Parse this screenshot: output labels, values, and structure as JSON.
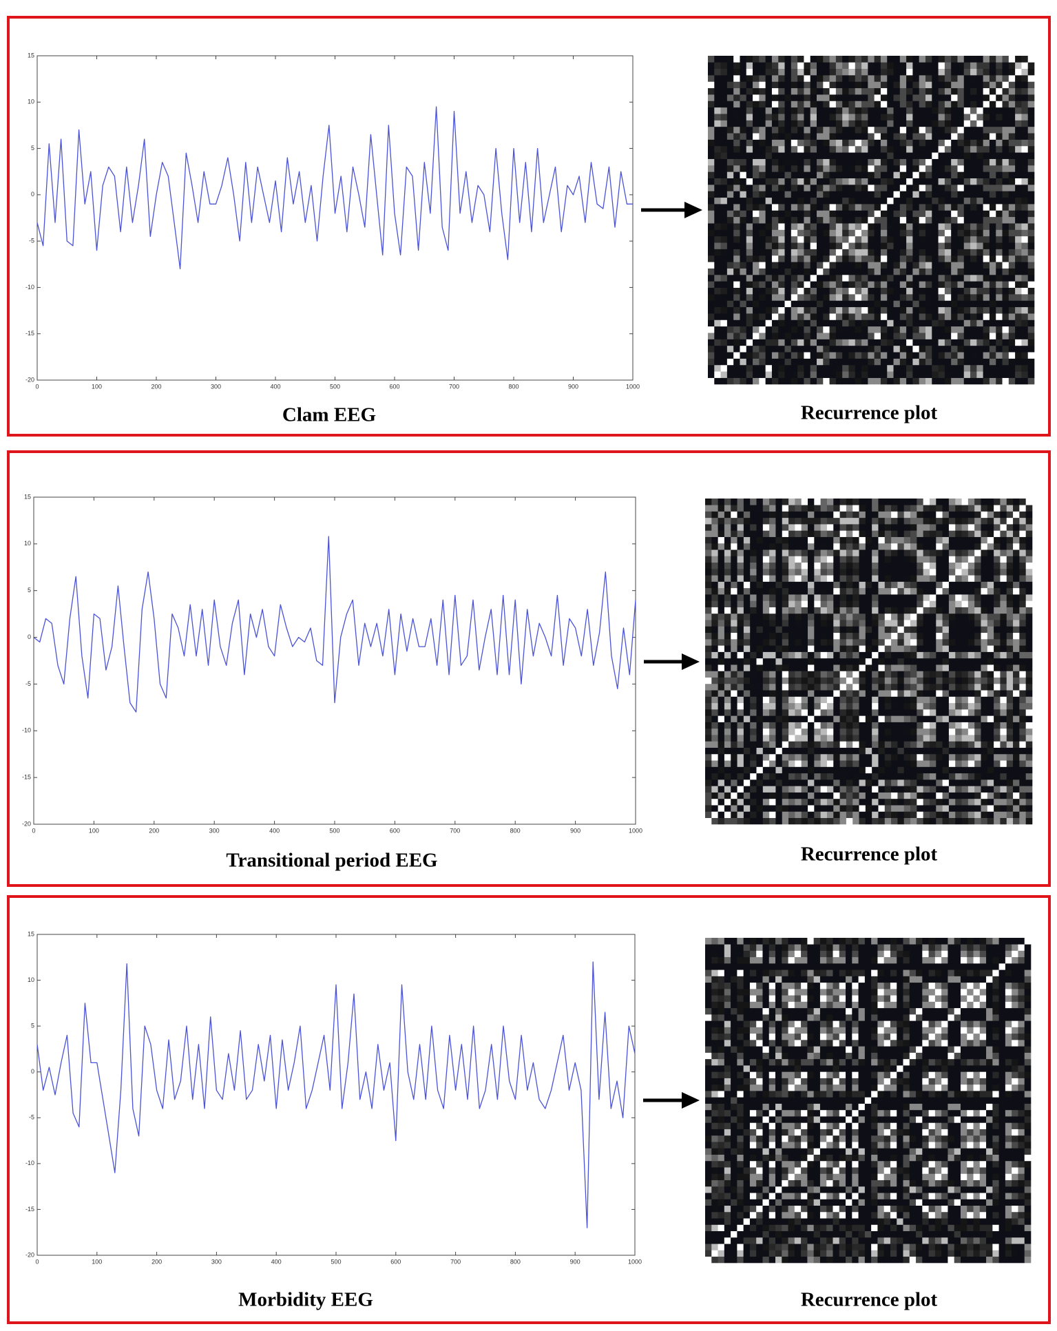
{
  "chart_data": [
    {
      "type": "line",
      "title": "Clam EEG",
      "plot_label": "Recurrence plot",
      "color": "#4a52d6",
      "xlim": [
        0,
        1000
      ],
      "ylim": [
        -20,
        15
      ],
      "xticks": [
        0,
        100,
        200,
        300,
        400,
        500,
        600,
        700,
        800,
        900,
        1000
      ],
      "yticks": [
        -20,
        -15,
        -10,
        -5,
        0,
        5,
        10,
        15
      ],
      "x": [
        0,
        10,
        20,
        30,
        40,
        50,
        60,
        70,
        80,
        90,
        100,
        110,
        120,
        130,
        140,
        150,
        160,
        170,
        180,
        190,
        200,
        210,
        220,
        230,
        240,
        250,
        260,
        270,
        280,
        290,
        300,
        310,
        320,
        330,
        340,
        350,
        360,
        370,
        380,
        390,
        400,
        410,
        420,
        430,
        440,
        450,
        460,
        470,
        480,
        490,
        500,
        510,
        520,
        530,
        540,
        550,
        560,
        570,
        580,
        590,
        600,
        610,
        620,
        630,
        640,
        650,
        660,
        670,
        680,
        690,
        700,
        710,
        720,
        730,
        740,
        750,
        760,
        770,
        780,
        790,
        800,
        810,
        820,
        830,
        840,
        850,
        860,
        870,
        880,
        890,
        900,
        910,
        920,
        930,
        940,
        950,
        960,
        970,
        980,
        990,
        1000
      ],
      "values": [
        -3,
        -5.5,
        5.5,
        -3,
        6,
        -5,
        -5.5,
        7,
        -1,
        2.5,
        -6,
        1,
        3,
        2,
        -4,
        3,
        -3,
        1,
        6,
        -4.5,
        0,
        3.5,
        2,
        -3,
        -8,
        4.5,
        1,
        -3,
        2.5,
        -1,
        -1,
        1,
        4,
        0,
        -5,
        3.5,
        -3,
        3,
        0,
        -3,
        1.5,
        -4,
        4,
        -1,
        2.5,
        -3,
        1,
        -5,
        2,
        7.5,
        -2,
        2,
        -4,
        3,
        0,
        -3.5,
        6.5,
        0,
        -6.5,
        7.5,
        -2,
        -6.5,
        3,
        2,
        -6,
        3.5,
        -2,
        9.5,
        -3.5,
        -6,
        9,
        -2,
        2.5,
        -3,
        1,
        0,
        -4,
        5,
        -2,
        -7,
        5,
        -3,
        3.5,
        -4,
        5,
        -3,
        0,
        3,
        -4,
        1,
        0,
        2,
        -3,
        3.5,
        -1,
        -1.5,
        3,
        -3.5,
        2.5,
        -1,
        -1
      ]
    },
    {
      "type": "line",
      "title": "Transitional period EEG",
      "plot_label": "Recurrence plot",
      "color": "#4a52d6",
      "xlim": [
        0,
        1000
      ],
      "ylim": [
        -20,
        15
      ],
      "xticks": [
        0,
        100,
        200,
        300,
        400,
        500,
        600,
        700,
        800,
        900,
        1000
      ],
      "yticks": [
        -20,
        -15,
        -10,
        -5,
        0,
        5,
        10,
        15
      ],
      "x": [
        0,
        10,
        20,
        30,
        40,
        50,
        60,
        70,
        80,
        90,
        100,
        110,
        120,
        130,
        140,
        150,
        160,
        170,
        180,
        190,
        200,
        210,
        220,
        230,
        240,
        250,
        260,
        270,
        280,
        290,
        300,
        310,
        320,
        330,
        340,
        350,
        360,
        370,
        380,
        390,
        400,
        410,
        420,
        430,
        440,
        450,
        460,
        470,
        480,
        490,
        500,
        510,
        520,
        530,
        540,
        550,
        560,
        570,
        580,
        590,
        600,
        610,
        620,
        630,
        640,
        650,
        660,
        670,
        680,
        690,
        700,
        710,
        720,
        730,
        740,
        750,
        760,
        770,
        780,
        790,
        800,
        810,
        820,
        830,
        840,
        850,
        860,
        870,
        880,
        890,
        900,
        910,
        920,
        930,
        940,
        950,
        960,
        970,
        980,
        990,
        1000
      ],
      "values": [
        0,
        -0.5,
        2,
        1.5,
        -3,
        -5,
        2,
        6.5,
        -2,
        -6.5,
        2.5,
        2,
        -3.5,
        -1,
        5.5,
        -1,
        -7,
        -8,
        3,
        7,
        2,
        -5,
        -6.5,
        2.5,
        1,
        -2,
        3.5,
        -2,
        3,
        -3,
        4,
        -1,
        -3,
        1.5,
        4,
        -4,
        2.5,
        0,
        3,
        -1,
        -2,
        3.5,
        1,
        -1,
        0,
        -0.5,
        1,
        -2.5,
        -3,
        10.8,
        -7,
        0,
        2.5,
        4,
        -3,
        1.5,
        -1,
        1.5,
        -2,
        3,
        -4,
        2.5,
        -1.5,
        2,
        -1,
        -1,
        2,
        -3,
        4,
        -4,
        4.5,
        -3,
        -2,
        4,
        -3.5,
        0,
        3,
        -4,
        4.5,
        -4,
        4,
        -5,
        3,
        -2,
        1.5,
        0,
        -2,
        4.5,
        -3,
        2,
        1,
        -2,
        3,
        -3,
        0.5,
        7,
        -2,
        -5.5,
        1,
        -4,
        4
      ]
    },
    {
      "type": "line",
      "title": "Morbidity EEG",
      "plot_label": "Recurrence plot",
      "color": "#4a52d6",
      "xlim": [
        0,
        1000
      ],
      "ylim": [
        -20,
        15
      ],
      "xticks": [
        0,
        100,
        200,
        300,
        400,
        500,
        600,
        700,
        800,
        900,
        1000
      ],
      "yticks": [
        -20,
        -15,
        -10,
        -5,
        0,
        5,
        10,
        15
      ],
      "x": [
        0,
        10,
        20,
        30,
        40,
        50,
        60,
        70,
        80,
        90,
        100,
        110,
        120,
        130,
        140,
        150,
        160,
        170,
        180,
        190,
        200,
        210,
        220,
        230,
        240,
        250,
        260,
        270,
        280,
        290,
        300,
        310,
        320,
        330,
        340,
        350,
        360,
        370,
        380,
        390,
        400,
        410,
        420,
        430,
        440,
        450,
        460,
        470,
        480,
        490,
        500,
        510,
        520,
        530,
        540,
        550,
        560,
        570,
        580,
        590,
        600,
        610,
        620,
        630,
        640,
        650,
        660,
        670,
        680,
        690,
        700,
        710,
        720,
        730,
        740,
        750,
        760,
        770,
        780,
        790,
        800,
        810,
        820,
        830,
        840,
        850,
        860,
        870,
        880,
        890,
        900,
        910,
        920,
        930,
        940,
        950,
        960,
        970,
        980,
        990,
        1000
      ],
      "values": [
        3,
        -2,
        0.5,
        -2.5,
        1,
        4,
        -4.5,
        -6,
        7.5,
        1,
        1,
        -3,
        -7,
        -11,
        -2,
        11.8,
        -4,
        -7,
        5,
        3,
        -2,
        -4,
        3.5,
        -3,
        -1,
        5,
        -3,
        3,
        -4,
        6,
        -2,
        -3,
        2,
        -2,
        4.5,
        -3,
        -2,
        3,
        -1,
        4,
        -4,
        3.5,
        -2,
        1,
        5,
        -4,
        -2,
        1,
        4,
        -2,
        9.5,
        -4,
        1,
        8.5,
        -3,
        0,
        -4,
        3,
        -2,
        1,
        -7.5,
        9.5,
        0,
        -3,
        3,
        -3,
        5,
        -2,
        -4,
        4,
        -2,
        3,
        -3,
        5,
        -4,
        -2,
        3,
        -3,
        5,
        -1,
        -3,
        4,
        -2,
        1,
        -3,
        -4,
        -2,
        1,
        4,
        -2,
        1,
        -2,
        -17,
        12,
        -3,
        6.5,
        -4,
        -1,
        -5,
        5,
        2
      ]
    }
  ]
}
